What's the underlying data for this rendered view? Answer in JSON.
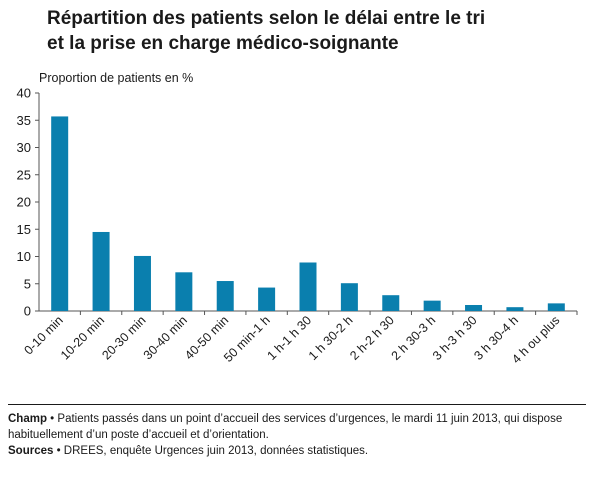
{
  "chart_data": {
    "type": "bar",
    "title_lines": [
      "Répartition des patients selon le délai entre le tri",
      "et la prise en charge médico-soignante"
    ],
    "ylabel": "Proportion de patients en %",
    "xlabel": "",
    "ylim": [
      0,
      40
    ],
    "yticks": [
      0,
      5,
      10,
      15,
      20,
      25,
      30,
      35,
      40
    ],
    "grid": false,
    "legend": "none",
    "bar_color": "#0a7fae",
    "categories": [
      "0-10 min",
      "10-20 min",
      "20-30 min",
      "30-40 min",
      "40-50 min",
      "50 min-1 h",
      "1 h-1 h 30",
      "1 h 30-2 h",
      "2 h-2 h 30",
      "2 h 30-3 h",
      "3 h-3 h 30",
      "3 h 30-4 h",
      "4 h ou plus"
    ],
    "values": [
      35.7,
      14.5,
      10.1,
      7.1,
      5.5,
      4.3,
      8.9,
      5.1,
      2.9,
      1.9,
      1.1,
      0.7,
      1.4
    ]
  },
  "footer": {
    "champ_label": "Champ",
    "champ_text": " • Patients passés dans un point d’accueil des services d’urgences, le mardi 11 juin 2013, qui dispose habituellement d’un poste d’accueil et d’orientation.",
    "sources_label": "Sources",
    "sources_text": " • DREES, enquête Urgences juin 2013, données statistiques."
  }
}
